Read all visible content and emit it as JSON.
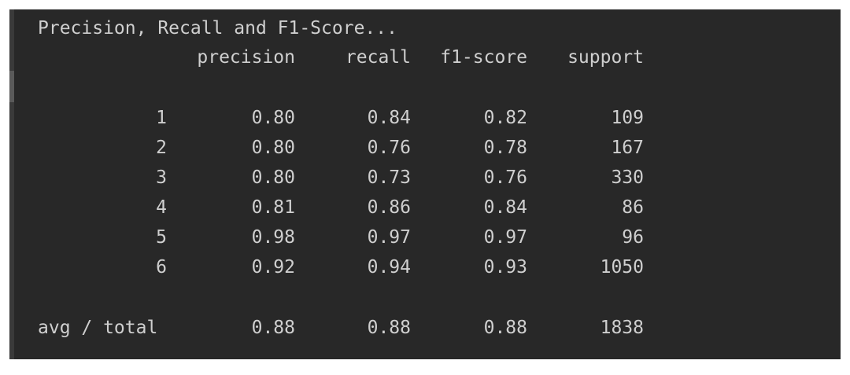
{
  "title": "Precision, Recall and F1-Score...",
  "table": {
    "header": [
      "precision",
      "recall",
      "f1-score",
      "support"
    ],
    "rows": [
      [
        "1",
        "0.80",
        "0.84",
        "0.82",
        "109"
      ],
      [
        "2",
        "0.80",
        "0.76",
        "0.78",
        "167"
      ],
      [
        "3",
        "0.80",
        "0.73",
        "0.76",
        "330"
      ],
      [
        "4",
        "0.81",
        "0.86",
        "0.84",
        "86"
      ],
      [
        "5",
        "0.98",
        "0.97",
        "0.97",
        "96"
      ],
      [
        "6",
        "0.92",
        "0.94",
        "0.93",
        "1050"
      ]
    ],
    "total": [
      "avg / total",
      "0.88",
      "0.88",
      "0.88",
      "1838"
    ]
  }
}
